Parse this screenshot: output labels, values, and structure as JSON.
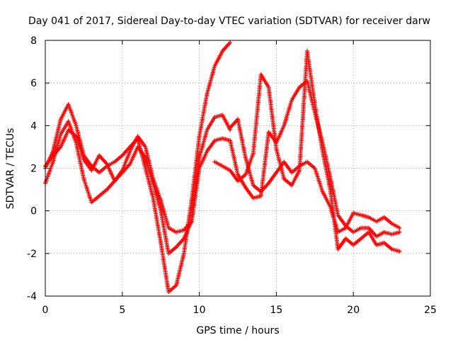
{
  "chart_data": {
    "type": "scatter",
    "title": "Day 041 of 2017, Sidereal Day-to-day VTEC variation (SDTVAR) for receiver darw",
    "xlabel": "GPS time / hours",
    "ylabel": "SDTVAR / TECUs",
    "xlim": [
      0,
      25
    ],
    "ylim": [
      -4,
      8
    ],
    "x_ticks": [
      "0",
      "5",
      "10",
      "15",
      "20",
      "25"
    ],
    "y_ticks": [
      "-4",
      "-2",
      "0",
      "2",
      "4",
      "6",
      "8"
    ],
    "grid": true,
    "legend": "none",
    "marker": "+",
    "marker_color": "#ff0000",
    "series": [
      {
        "x": [
          0.0,
          0.5,
          1.0,
          1.5,
          2.0,
          2.5,
          3.0,
          3.5,
          4.0,
          4.5,
          5.0,
          5.5,
          6.0,
          6.5,
          7.0,
          7.5,
          8.0,
          8.5,
          9.0,
          9.5,
          10.0,
          10.5,
          11.0,
          11.5,
          12.0
        ],
        "y": [
          2.0,
          2.8,
          4.3,
          5.0,
          4.0,
          2.6,
          2.1,
          1.8,
          2.1,
          2.3,
          2.6,
          3.0,
          3.4,
          2.0,
          0.6,
          -1.5,
          -3.8,
          -3.5,
          -2.0,
          0.5,
          3.5,
          5.5,
          6.8,
          7.5,
          7.9
        ]
      },
      {
        "x": [
          0.0,
          0.5,
          1.0,
          1.5,
          2.0,
          2.5,
          3.0,
          3.5,
          4.0,
          4.5,
          5.0,
          5.5,
          6.0,
          6.5,
          7.0,
          7.5,
          8.0,
          8.5,
          9.0,
          9.5,
          10.0,
          10.5,
          11.0,
          11.5,
          12.0
        ],
        "y": [
          1.3,
          2.3,
          3.6,
          4.2,
          3.2,
          1.5,
          0.4,
          0.7,
          1.0,
          1.4,
          1.8,
          2.2,
          3.0,
          2.5,
          1.3,
          0.0,
          -2.0,
          -1.7,
          -1.3,
          -0.5,
          2.5,
          3.8,
          4.4,
          4.5,
          3.8
        ]
      },
      {
        "x": [
          0.0,
          0.5,
          1.0,
          1.5,
          2.0,
          2.5,
          3.0,
          3.5,
          4.0,
          4.5,
          5.0,
          5.5,
          6.0,
          6.5,
          7.0,
          7.5,
          8.0,
          8.5,
          9.0,
          9.5,
          10.0,
          10.5,
          11.0,
          11.5,
          12.0
        ],
        "y": [
          2.1,
          2.6,
          3.0,
          3.8,
          3.5,
          2.4,
          1.9,
          2.6,
          2.2,
          1.4,
          1.9,
          2.8,
          3.5,
          3.0,
          1.5,
          0.5,
          -0.8,
          -1.0,
          -0.9,
          -0.5,
          2.0,
          2.8,
          3.3,
          3.4,
          3.3
        ]
      },
      {
        "x": [
          12.0,
          12.5,
          13.0,
          13.5,
          14.0,
          14.5,
          15.0,
          15.5,
          16.0,
          16.5,
          17.0,
          17.5,
          18.0,
          18.5,
          19.0,
          19.5,
          20.0,
          20.5,
          21.0,
          21.5,
          22.0,
          22.5,
          23.0
        ],
        "y": [
          3.9,
          4.3,
          2.5,
          1.2,
          0.9,
          1.3,
          1.8,
          2.3,
          1.8,
          2.1,
          2.3,
          2.0,
          0.9,
          0.2,
          -1.0,
          -0.8,
          -0.1,
          -0.2,
          -0.3,
          -0.5,
          -0.3,
          -0.6,
          -0.8
        ]
      },
      {
        "x": [
          12.0,
          12.5,
          13.0,
          13.5,
          14.0,
          14.5,
          15.0,
          15.5,
          16.0,
          16.5,
          17.0,
          17.5,
          18.0,
          18.5,
          19.0,
          19.5,
          20.0,
          20.5,
          21.0,
          21.5,
          22.0,
          22.5,
          23.0
        ],
        "y": [
          3.3,
          1.7,
          1.1,
          0.6,
          0.7,
          3.7,
          3.2,
          4.0,
          5.2,
          5.8,
          6.1,
          4.6,
          3.2,
          1.6,
          -0.2,
          -0.7,
          -1.0,
          -0.8,
          -0.8,
          -1.2,
          -1.0,
          -1.1,
          -1.0
        ]
      },
      {
        "x": [
          11.0,
          11.5,
          12.0,
          12.5,
          13.0,
          13.5,
          14.0,
          14.5,
          15.0,
          15.5,
          16.0,
          16.5,
          17.0,
          17.5,
          18.0,
          18.5,
          19.0,
          19.5,
          20.0,
          20.5,
          21.0,
          21.5,
          22.0,
          22.5,
          23.0
        ],
        "y": [
          2.3,
          2.1,
          1.9,
          1.4,
          1.7,
          2.7,
          6.4,
          5.8,
          2.9,
          1.5,
          1.2,
          1.9,
          7.5,
          5.0,
          2.8,
          1.0,
          -1.8,
          -1.3,
          -1.6,
          -1.3,
          -1.0,
          -1.6,
          -1.5,
          -1.8,
          -1.9
        ]
      }
    ]
  }
}
